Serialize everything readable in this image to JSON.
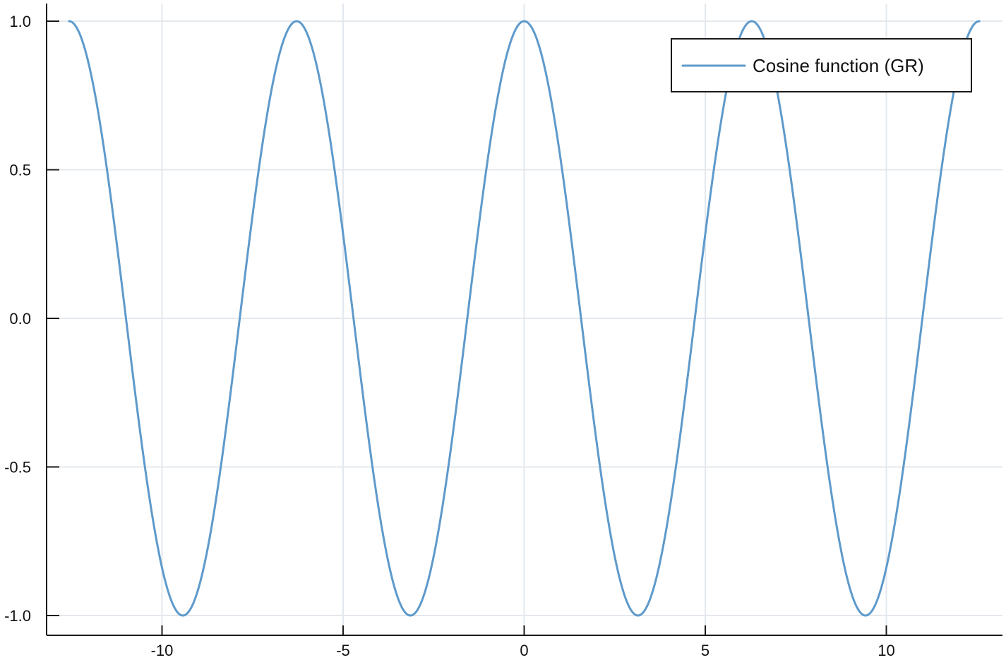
{
  "chart_data": {
    "type": "line",
    "title": "",
    "xlabel": "",
    "ylabel": "",
    "xlim": [
      -13.2,
      13.2
    ],
    "ylim": [
      -1.05,
      1.05
    ],
    "x_ticks": [
      -10,
      -5,
      0,
      5,
      10
    ],
    "x_tick_labels": [
      "-10",
      "-5",
      "0",
      "5",
      "10"
    ],
    "y_ticks": [
      -1.0,
      -0.5,
      0.0,
      0.5,
      1.0
    ],
    "y_tick_labels": [
      "-1.0",
      "-0.5",
      "0.0",
      "0.5",
      "1.0"
    ],
    "grid": true,
    "legend_position": "top-right",
    "series": [
      {
        "name": "Cosine function (GR)",
        "function": "cos(x)",
        "color": "#5e9acb",
        "x": [
          -12.566,
          -12.0,
          -11.0,
          -10.0,
          -9.425,
          -9.0,
          -8.0,
          -7.0,
          -6.283,
          -6.0,
          -5.0,
          -4.0,
          -3.142,
          -3.0,
          -2.0,
          -1.0,
          0.0,
          1.0,
          2.0,
          3.0,
          3.142,
          4.0,
          5.0,
          6.0,
          6.283,
          7.0,
          8.0,
          9.0,
          9.425,
          10.0,
          11.0,
          12.0,
          12.566
        ],
        "y": [
          1.0,
          0.844,
          0.004,
          -0.839,
          -1.0,
          -0.911,
          -0.146,
          0.754,
          1.0,
          0.96,
          0.284,
          -0.654,
          -1.0,
          -0.99,
          -0.416,
          0.54,
          1.0,
          0.54,
          -0.416,
          -0.99,
          -1.0,
          -0.654,
          0.284,
          0.96,
          1.0,
          0.754,
          -0.146,
          -0.911,
          -1.0,
          -0.839,
          0.004,
          0.844,
          1.0
        ]
      }
    ]
  }
}
